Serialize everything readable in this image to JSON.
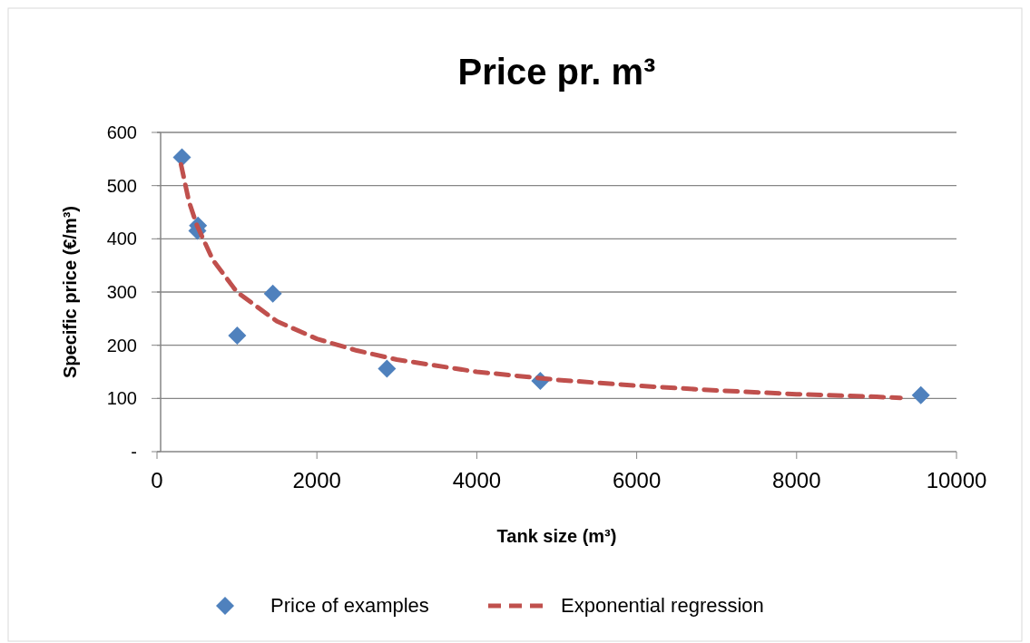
{
  "chart_data": {
    "type": "scatter",
    "title": "Price pr. m³",
    "xlabel": "Tank size (m³)",
    "ylabel": "Specific price (€/m³)",
    "xlim": [
      0,
      10000
    ],
    "xticks": [
      0,
      2000,
      4000,
      6000,
      8000,
      10000
    ],
    "ylim": [
      0,
      600
    ],
    "yticks": [
      {
        "value": 0,
        "label": "-"
      },
      100,
      200,
      300,
      400,
      500,
      600
    ],
    "grid": "y",
    "legend": "bottom",
    "series": [
      {
        "name": "Price of examples",
        "color": "#4f81bd",
        "marker": "diamond",
        "x": [
          312,
          513,
          505,
          1003,
          1449,
          2876,
          4794,
          9554
        ],
        "values": [
          553,
          425,
          415,
          218,
          297,
          156,
          133,
          106
        ]
      },
      {
        "name": "Exponential regression",
        "type": "line",
        "color": "#c0504d",
        "line_style": "dashed",
        "marker": "none",
        "x": [
          300,
          400,
          500,
          700,
          1000,
          1500,
          2000,
          2500,
          3000,
          4000,
          5000,
          6000,
          7000,
          8000,
          9000,
          9300
        ],
        "values": [
          540,
          470,
          425,
          360,
          300,
          245,
          212,
          190,
          173,
          150,
          135,
          124,
          115,
          108,
          103,
          101
        ]
      }
    ]
  }
}
